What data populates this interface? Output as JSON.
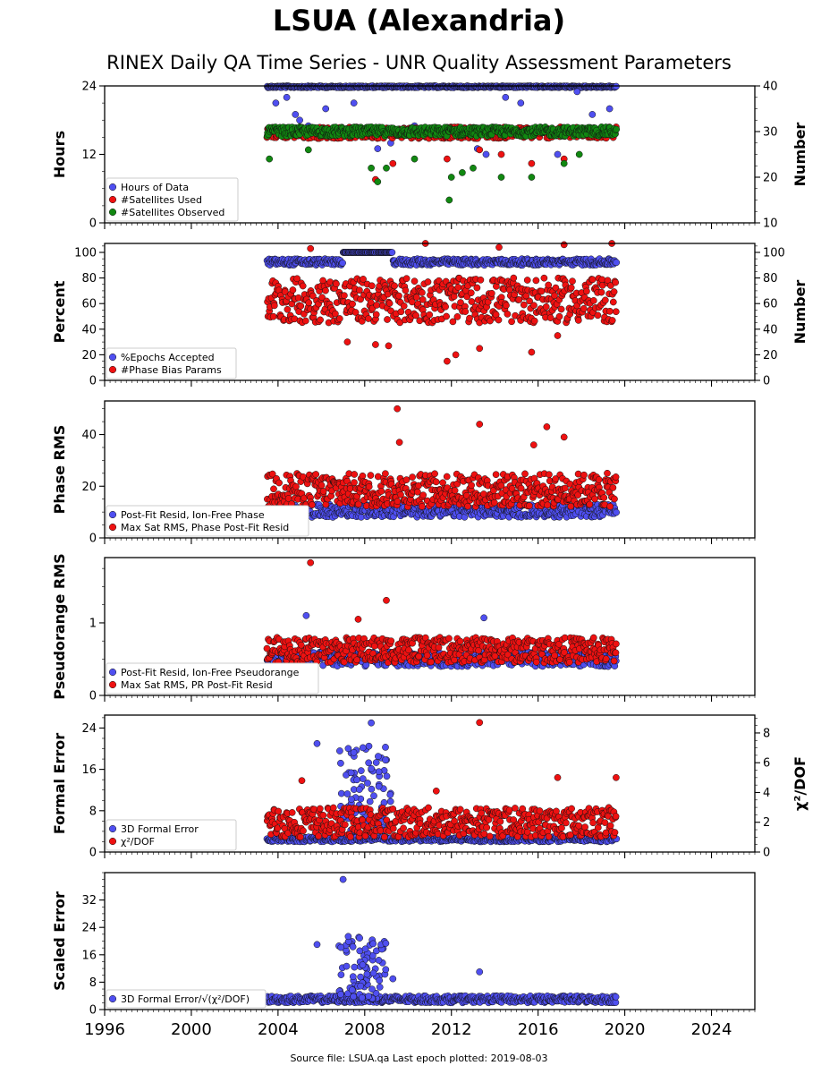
{
  "header": {
    "title": "LSUA (Alexandria)",
    "subtitle": "RINEX Daily QA Time Series - UNR Quality Assessment Parameters"
  },
  "footer": {
    "source_file": "Source file: LSUA.qa Last epoch plotted: 2019-08-03"
  },
  "colors": {
    "blue": "#4f4ff0",
    "red": "#ee1111",
    "green": "#118811"
  },
  "chart_data": [
    {
      "type": "scatter",
      "panel": 1,
      "xlim": [
        1996,
        2026
      ],
      "xticks": [
        "1996",
        "2000",
        "2004",
        "2008",
        "2012",
        "2016",
        "2020",
        "2024"
      ],
      "ylabel": "Hours",
      "ylim": [
        0,
        24
      ],
      "yticks": [
        "0",
        "12",
        "24"
      ],
      "y2label": "Number",
      "y2lim": [
        10,
        40
      ],
      "y2ticks": [
        "10",
        "20",
        "30",
        "40"
      ],
      "legend_position": "lower-left",
      "series": [
        {
          "name": "Hours of Data",
          "color": "blue",
          "axis": "left",
          "x_range": [
            2003.5,
            2019.6
          ],
          "typical": 24,
          "outliers": [
            [
              2003.9,
              21
            ],
            [
              2004.4,
              22
            ],
            [
              2004.8,
              19
            ],
            [
              2005.0,
              18
            ],
            [
              2005.4,
              17
            ],
            [
              2006.2,
              20
            ],
            [
              2007.5,
              21
            ],
            [
              2008.6,
              13
            ],
            [
              2009.2,
              14
            ],
            [
              2010.3,
              17
            ],
            [
              2013.2,
              13
            ],
            [
              2013.6,
              12
            ],
            [
              2014.5,
              22
            ],
            [
              2015.2,
              21
            ],
            [
              2016.9,
              12
            ],
            [
              2017.8,
              23
            ],
            [
              2018.5,
              19
            ],
            [
              2019.3,
              20
            ]
          ]
        },
        {
          "name": "#Satellites Used",
          "color": "red",
          "axis": "right",
          "x_range": [
            2003.5,
            2019.6
          ],
          "typical": [
            28.5,
            31
          ],
          "outliers": [
            [
              2008.5,
              19.5
            ],
            [
              2009.3,
              23
            ],
            [
              2011.8,
              24
            ],
            [
              2012.3,
              31
            ],
            [
              2013.3,
              26
            ],
            [
              2014.3,
              25
            ],
            [
              2015.7,
              23
            ],
            [
              2017.2,
              24
            ],
            [
              2019.4,
              30
            ]
          ]
        },
        {
          "name": "#Satellites Observed",
          "color": "green",
          "axis": "right",
          "x_range": [
            2003.5,
            2019.6
          ],
          "typical": [
            29,
            31
          ],
          "outliers": [
            [
              2003.6,
              24
            ],
            [
              2005.4,
              26
            ],
            [
              2008.3,
              22
            ],
            [
              2008.6,
              19
            ],
            [
              2009.0,
              22
            ],
            [
              2010.3,
              24
            ],
            [
              2011.9,
              15
            ],
            [
              2012.0,
              20
            ],
            [
              2012.5,
              21
            ],
            [
              2013.0,
              22
            ],
            [
              2014.3,
              20
            ],
            [
              2015.7,
              20
            ],
            [
              2017.2,
              23
            ],
            [
              2017.9,
              25
            ]
          ]
        }
      ]
    },
    {
      "type": "scatter",
      "panel": 2,
      "xlim": [
        1996,
        2026
      ],
      "ylabel": "Percent",
      "ylim": [
        0,
        107
      ],
      "yticks": [
        "0",
        "20",
        "40",
        "60",
        "80",
        "100"
      ],
      "y2label": "Number",
      "y2lim": [
        0,
        107
      ],
      "y2ticks": [
        "0",
        "20",
        "40",
        "60",
        "80",
        "100"
      ],
      "legend_position": "lower-left",
      "series": [
        {
          "name": "%Epochs Accepted",
          "color": "blue",
          "x_range": [
            2003.5,
            2019.6
          ],
          "typical": [
            90,
            95
          ],
          "segment_100": [
            2007.0,
            2009.3
          ]
        },
        {
          "name": "#Phase Bias Params",
          "color": "red",
          "x_range": [
            2003.5,
            2019.6
          ],
          "typical": [
            45,
            80
          ],
          "outliers": [
            [
              2005.5,
              103
            ],
            [
              2007.2,
              30
            ],
            [
              2008.5,
              28
            ],
            [
              2009.1,
              27
            ],
            [
              2010.8,
              107
            ],
            [
              2011.8,
              15
            ],
            [
              2012.2,
              20
            ],
            [
              2013.3,
              25
            ],
            [
              2014.2,
              104
            ],
            [
              2015.7,
              22
            ],
            [
              2016.9,
              35
            ],
            [
              2017.2,
              106
            ],
            [
              2019.4,
              107
            ]
          ]
        }
      ]
    },
    {
      "type": "scatter",
      "panel": 3,
      "xlim": [
        1996,
        2026
      ],
      "ylabel": "Phase RMS",
      "ylim": [
        0,
        53
      ],
      "yticks": [
        "0",
        "20",
        "40"
      ],
      "legend_position": "lower-left",
      "series": [
        {
          "name": "Post-Fit Resid, Ion-Free Phase",
          "color": "blue",
          "x_range": [
            2003.5,
            2019.6
          ],
          "typical": [
            8,
            13
          ]
        },
        {
          "name": "Max Sat RMS, Phase Post-Fit Resid",
          "color": "red",
          "x_range": [
            2003.5,
            2019.6
          ],
          "typical": [
            12,
            25
          ],
          "outliers": [
            [
              2009.5,
              50
            ],
            [
              2013.3,
              44
            ],
            [
              2016.4,
              43
            ],
            [
              2017.2,
              39
            ],
            [
              2015.8,
              36
            ],
            [
              2009.6,
              37
            ]
          ]
        }
      ]
    },
    {
      "type": "scatter",
      "panel": 4,
      "xlim": [
        1996,
        2026
      ],
      "ylabel": "Pseudorange RMS",
      "ylim": [
        0,
        1.9
      ],
      "yticks": [
        "0",
        "1"
      ],
      "legend_position": "lower-left",
      "series": [
        {
          "name": "Post-Fit Resid, Ion-Free Pseudorange",
          "color": "blue",
          "x_range": [
            2003.5,
            2019.6
          ],
          "typical": [
            0.4,
            0.6
          ],
          "outliers": [
            [
              2013.5,
              1.07
            ],
            [
              2005.3,
              1.1
            ]
          ]
        },
        {
          "name": "Max Sat RMS, PR Post-Fit Resid",
          "color": "red",
          "x_range": [
            2003.5,
            2019.6
          ],
          "typical": [
            0.45,
            0.8
          ],
          "outliers": [
            [
              2005.5,
              1.83
            ],
            [
              2009.0,
              1.31
            ],
            [
              2007.7,
              1.05
            ]
          ]
        }
      ]
    },
    {
      "type": "scatter",
      "panel": 5,
      "xlim": [
        1996,
        2026
      ],
      "ylabel": "Formal Error",
      "ylim": [
        0,
        26.5
      ],
      "yticks": [
        "0",
        "8",
        "16",
        "24"
      ],
      "y2label": "χ²/DOF",
      "y2lim": [
        0,
        9.2
      ],
      "y2ticks": [
        "0",
        "2",
        "4",
        "6",
        "8"
      ],
      "legend_position": "lower-left",
      "series": [
        {
          "name": "3D Formal Error",
          "color": "blue",
          "x_range": [
            2003.5,
            2019.6
          ],
          "typical": [
            2,
            3
          ],
          "cluster": [
            2006.8,
            2009.2,
            4,
            21
          ],
          "outliers": [
            [
              2008.3,
              25
            ],
            [
              2005.8,
              21
            ]
          ]
        },
        {
          "name": "χ²/DOF",
          "color": "red",
          "axis": "right",
          "x_range": [
            2003.5,
            2019.6
          ],
          "typical": [
            1,
            3
          ],
          "outliers": [
            [
              2013.3,
              8.7
            ],
            [
              2005.1,
              4.8
            ],
            [
              2016.9,
              5.0
            ],
            [
              2019.6,
              5.0
            ],
            [
              2011.3,
              4.1
            ]
          ]
        }
      ]
    },
    {
      "type": "scatter",
      "panel": 6,
      "xlim": [
        1996,
        2026
      ],
      "ylabel": "Scaled Error",
      "ylim": [
        0,
        40
      ],
      "yticks": [
        "0",
        "8",
        "16",
        "24",
        "32"
      ],
      "legend_position": "lower-left",
      "series": [
        {
          "name": "3D Formal Error/√(χ²/DOF)",
          "color": "blue",
          "x_range": [
            2003.5,
            2019.6
          ],
          "typical": [
            2,
            4
          ],
          "cluster": [
            2006.8,
            2009.0,
            3,
            22
          ],
          "outliers": [
            [
              2007.0,
              38
            ],
            [
              2005.8,
              19
            ],
            [
              2013.3,
              11
            ],
            [
              2009.3,
              9
            ]
          ]
        }
      ]
    }
  ]
}
